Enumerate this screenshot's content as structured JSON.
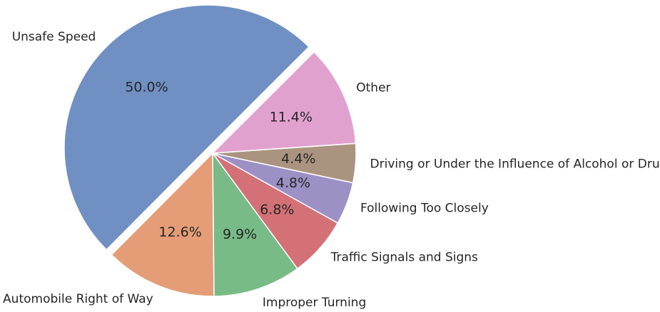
{
  "chart_data": {
    "type": "pie",
    "categories": [
      "Unsafe Speed",
      "Automobile Right of Way",
      "Improper Turning",
      "Traffic Signals and Signs",
      "Following Too Closely",
      "Driving or Under the Influence of Alcohol or Drug",
      "Other"
    ],
    "values": [
      50.0,
      12.6,
      9.9,
      6.8,
      4.8,
      4.4,
      11.4
    ],
    "value_labels": [
      "50.0%",
      "12.6%",
      "9.9%",
      "6.8%",
      "4.8%",
      "4.4%",
      "11.4%"
    ],
    "colors": [
      "#7090c3",
      "#e49d77",
      "#78bb87",
      "#d37176",
      "#9c90c5",
      "#aa9480",
      "#e1a1cf"
    ]
  }
}
